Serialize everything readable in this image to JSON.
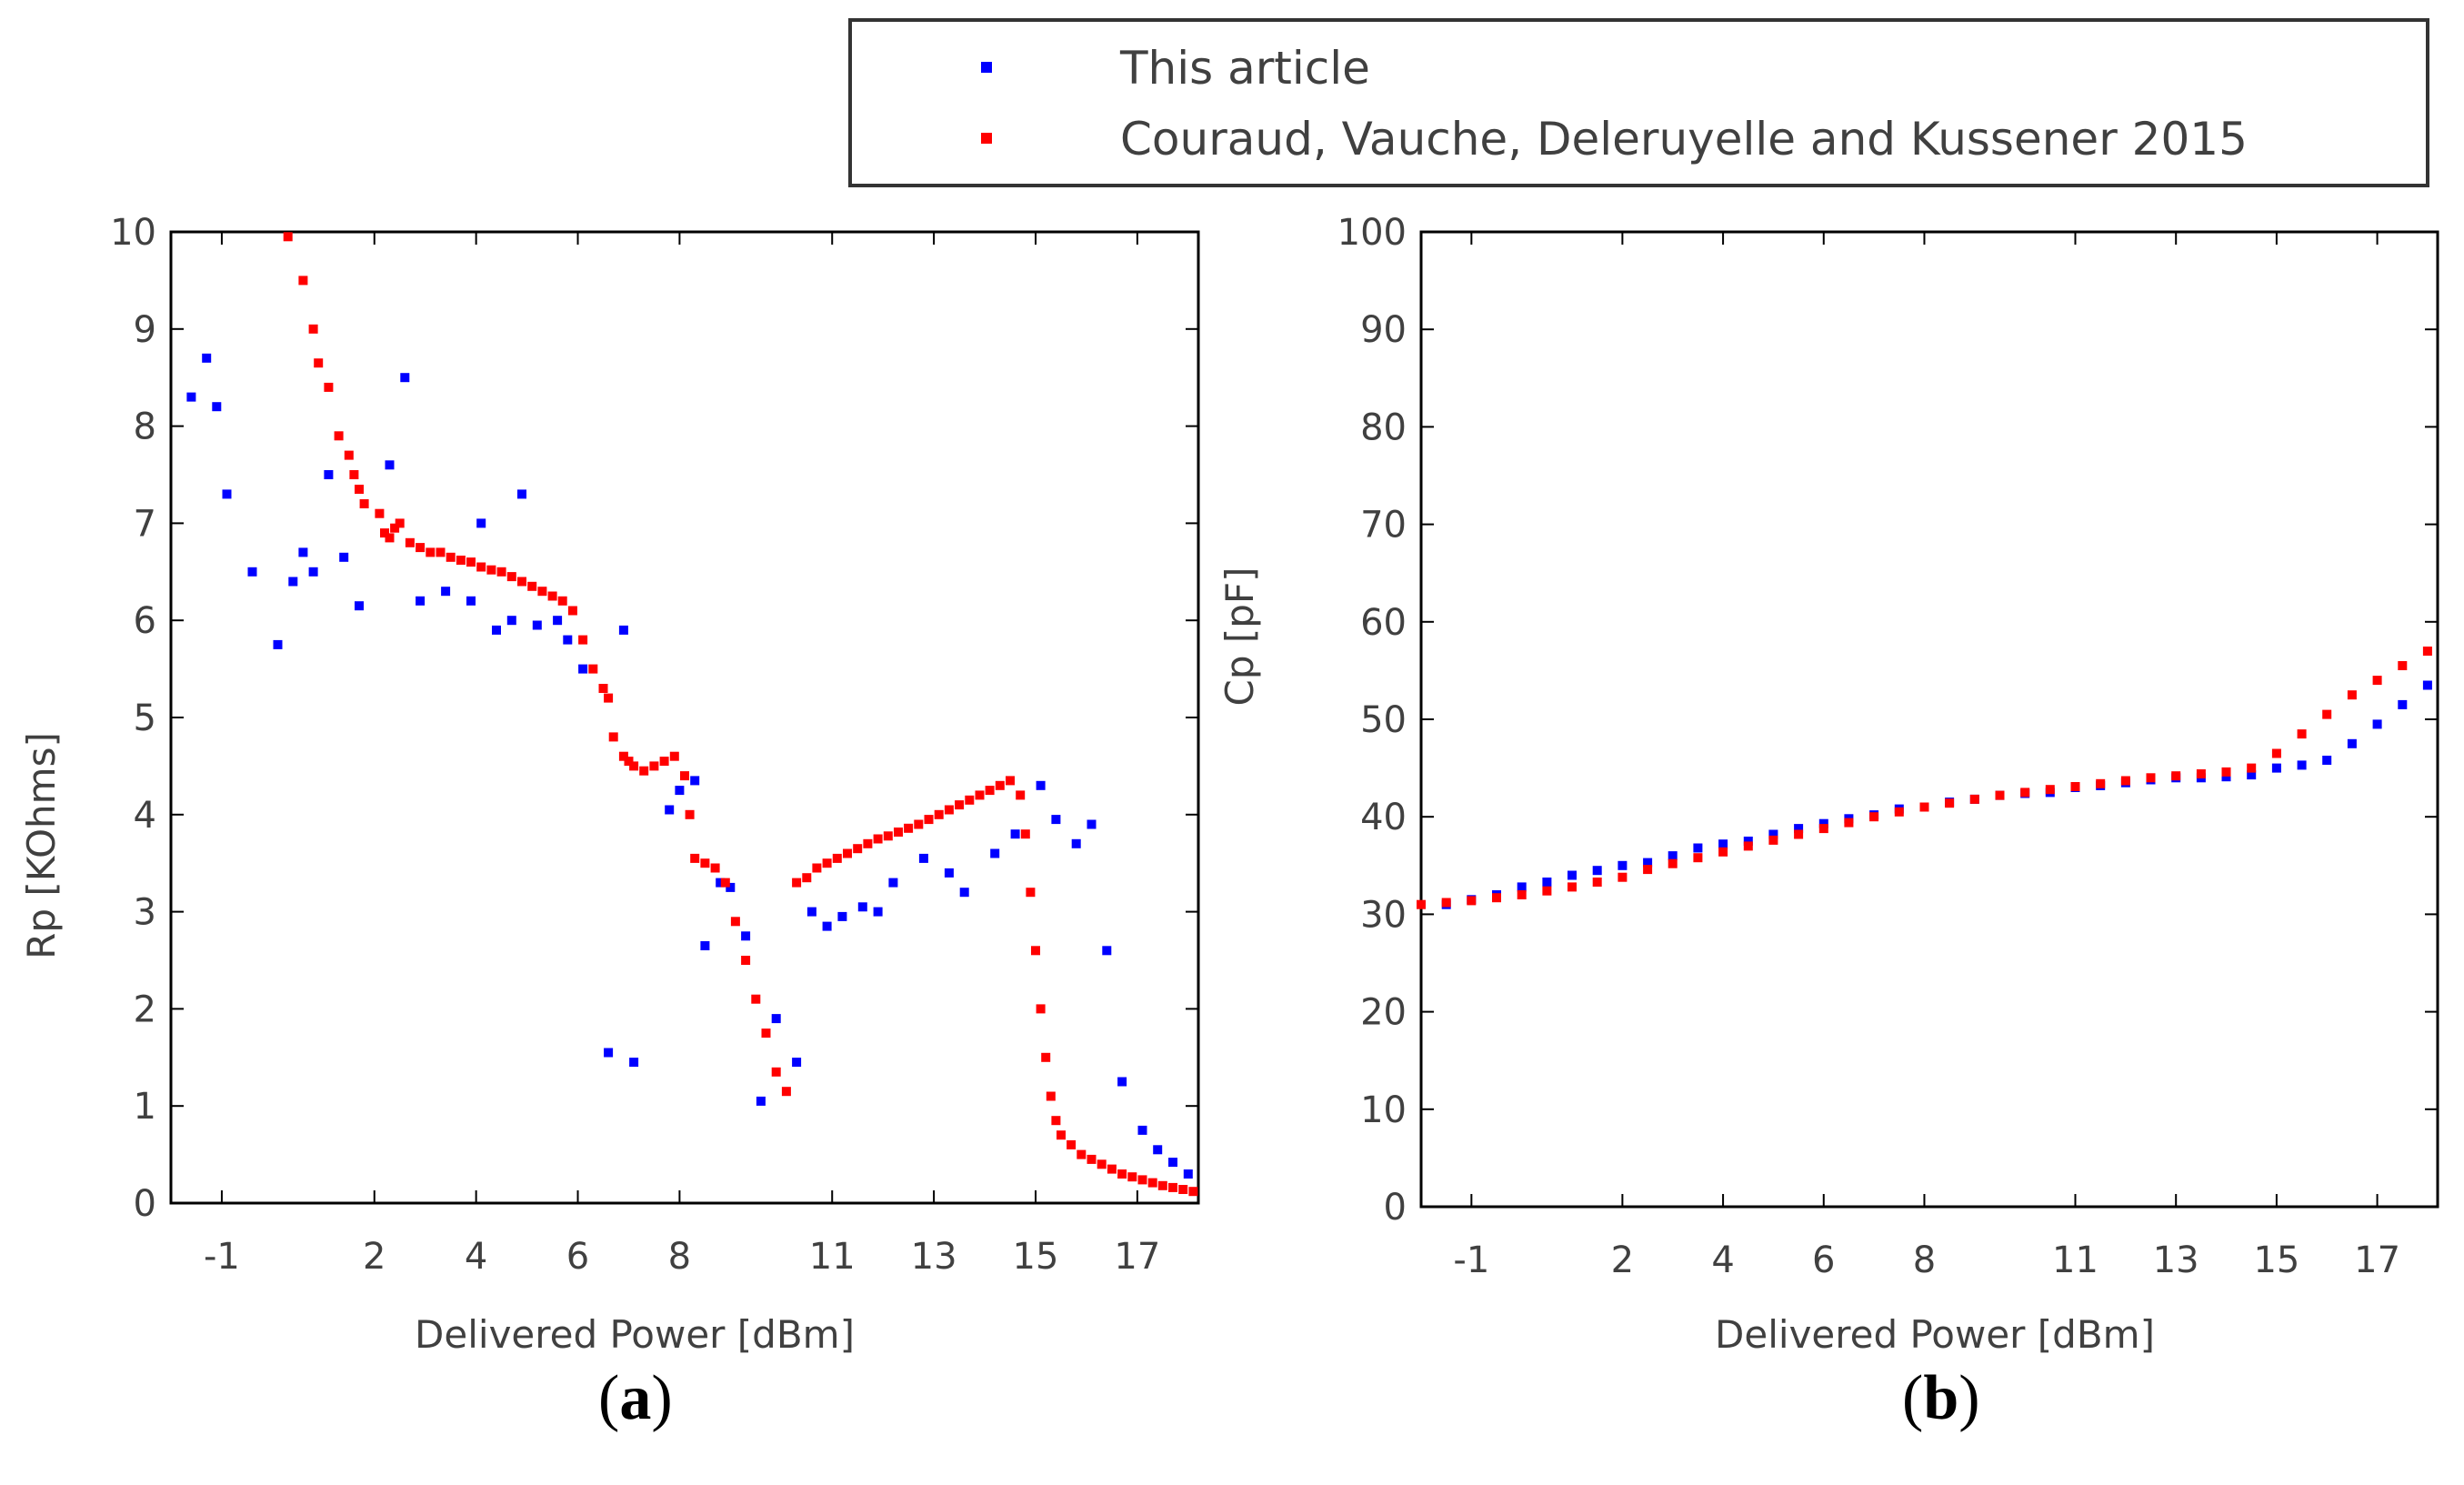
{
  "legend": {
    "entries": [
      {
        "label": "This article",
        "color": "#0000ff"
      },
      {
        "label": "Couraud, Vauche, Deleruyelle and Kussener 2015",
        "color": "#ff0000"
      }
    ]
  },
  "chart_data": [
    {
      "type": "scatter",
      "panel_label": {
        "open": "(",
        "letter": "a",
        "close": ")"
      },
      "xlabel": "Delivered Power [dBm]",
      "ylabel": "Rp [KOhms]",
      "xlim": [
        -2.0,
        18.2
      ],
      "ylim": [
        0,
        10
      ],
      "xticks": [
        -1,
        2,
        4,
        6,
        8,
        11,
        13,
        15,
        17
      ],
      "yticks": [
        0,
        1,
        2,
        3,
        4,
        5,
        6,
        7,
        8,
        9,
        10
      ],
      "series": [
        {
          "name": "This article",
          "color": "#0000ff",
          "x": [
            -1.6,
            -1.3,
            -1.1,
            -0.9,
            -0.4,
            0.1,
            0.4,
            0.6,
            0.8,
            1.1,
            1.4,
            1.7,
            2.3,
            2.6,
            2.9,
            3.4,
            3.9,
            4.1,
            4.4,
            4.7,
            4.9,
            5.2,
            5.6,
            5.8,
            6.1,
            6.6,
            6.9,
            7.1,
            7.8,
            8.0,
            8.3,
            8.5,
            8.8,
            9.0,
            9.3,
            9.6,
            9.9,
            10.3,
            10.6,
            10.9,
            11.2,
            11.6,
            11.9,
            12.2,
            12.8,
            13.3,
            13.6,
            14.2,
            14.6,
            15.1,
            15.4,
            15.8,
            16.1,
            16.4,
            16.7,
            17.1,
            17.4,
            17.7,
            18.0
          ],
          "y": [
            8.3,
            8.7,
            8.2,
            7.3,
            6.5,
            5.75,
            6.4,
            6.7,
            6.5,
            7.5,
            6.65,
            6.15,
            7.6,
            8.5,
            6.2,
            6.3,
            6.2,
            7.0,
            5.9,
            6.0,
            7.3,
            5.95,
            6.0,
            5.8,
            5.5,
            1.55,
            5.9,
            1.45,
            4.05,
            4.25,
            4.35,
            2.65,
            3.3,
            3.25,
            2.75,
            1.05,
            1.9,
            1.45,
            3.0,
            2.85,
            2.95,
            3.05,
            3.0,
            3.3,
            3.55,
            3.4,
            3.2,
            3.6,
            3.8,
            4.3,
            3.95,
            3.7,
            3.9,
            2.6,
            1.25,
            0.75,
            0.55,
            0.42,
            0.3
          ]
        },
        {
          "name": "Couraud, Vauche, Deleruyelle and Kussener 2015",
          "color": "#ff0000",
          "x": [
            0.3,
            0.6,
            0.8,
            0.9,
            1.1,
            1.3,
            1.5,
            1.6,
            1.7,
            1.8,
            2.1,
            2.2,
            2.3,
            2.4,
            2.5,
            2.7,
            2.9,
            3.1,
            3.3,
            3.5,
            3.7,
            3.9,
            4.1,
            4.3,
            4.5,
            4.7,
            4.9,
            5.1,
            5.3,
            5.5,
            5.7,
            5.9,
            6.1,
            6.3,
            6.5,
            6.6,
            6.7,
            6.9,
            7.0,
            7.1,
            7.3,
            7.5,
            7.7,
            7.9,
            8.1,
            8.2,
            8.3,
            8.5,
            8.7,
            8.9,
            9.1,
            9.3,
            9.5,
            9.7,
            9.9,
            10.1,
            10.3,
            10.5,
            10.7,
            10.9,
            11.1,
            11.3,
            11.5,
            11.7,
            11.9,
            12.1,
            12.3,
            12.5,
            12.7,
            12.9,
            13.1,
            13.3,
            13.5,
            13.7,
            13.9,
            14.1,
            14.3,
            14.5,
            14.7,
            14.8,
            14.9,
            15.0,
            15.1,
            15.2,
            15.3,
            15.4,
            15.5,
            15.7,
            15.9,
            16.1,
            16.3,
            16.5,
            16.7,
            16.9,
            17.1,
            17.3,
            17.5,
            17.7,
            17.9,
            18.1
          ],
          "y": [
            9.95,
            9.5,
            9.0,
            8.65,
            8.4,
            7.9,
            7.7,
            7.5,
            7.35,
            7.2,
            7.1,
            6.9,
            6.85,
            6.95,
            7.0,
            6.8,
            6.75,
            6.7,
            6.7,
            6.65,
            6.62,
            6.6,
            6.55,
            6.52,
            6.5,
            6.45,
            6.4,
            6.35,
            6.3,
            6.25,
            6.2,
            6.1,
            5.8,
            5.5,
            5.3,
            5.2,
            4.8,
            4.6,
            4.55,
            4.5,
            4.45,
            4.5,
            4.55,
            4.6,
            4.4,
            4.0,
            3.55,
            3.5,
            3.45,
            3.3,
            2.9,
            2.5,
            2.1,
            1.75,
            1.35,
            1.15,
            3.3,
            3.35,
            3.45,
            3.5,
            3.55,
            3.6,
            3.65,
            3.7,
            3.75,
            3.78,
            3.82,
            3.86,
            3.9,
            3.95,
            4.0,
            4.05,
            4.1,
            4.15,
            4.2,
            4.25,
            4.3,
            4.35,
            4.2,
            3.8,
            3.2,
            2.6,
            2.0,
            1.5,
            1.1,
            0.85,
            0.7,
            0.6,
            0.5,
            0.45,
            0.4,
            0.35,
            0.3,
            0.27,
            0.24,
            0.21,
            0.18,
            0.16,
            0.14,
            0.12
          ]
        }
      ]
    },
    {
      "type": "scatter",
      "panel_label": {
        "open": "(",
        "letter": "b",
        "close": ")"
      },
      "xlabel": "Delivered Power [dBm]",
      "ylabel": "Cp [pF]",
      "xlim": [
        -2.0,
        18.2
      ],
      "ylim": [
        0,
        100
      ],
      "xticks": [
        -1,
        2,
        4,
        6,
        8,
        11,
        13,
        15,
        17
      ],
      "yticks": [
        0,
        10,
        20,
        30,
        40,
        50,
        60,
        70,
        80,
        90,
        100
      ],
      "series": [
        {
          "name": "This article",
          "color": "#0000ff",
          "x": [
            -1.5,
            -1.0,
            -0.5,
            0.0,
            0.5,
            1.0,
            1.5,
            2.0,
            2.5,
            3.0,
            3.5,
            4.0,
            4.5,
            5.0,
            5.5,
            6.0,
            6.5,
            7.0,
            7.5,
            8.0,
            8.5,
            9.0,
            9.5,
            10.0,
            10.5,
            11.0,
            11.5,
            12.0,
            12.5,
            13.0,
            13.5,
            14.0,
            14.5,
            15.0,
            15.5,
            16.0,
            16.5,
            17.0,
            17.5,
            18.0
          ],
          "y": [
            31.0,
            31.5,
            32.0,
            32.8,
            33.3,
            34.0,
            34.5,
            35.0,
            35.3,
            36.0,
            36.8,
            37.2,
            37.5,
            38.2,
            38.8,
            39.3,
            39.8,
            40.2,
            40.8,
            41.0,
            41.5,
            41.8,
            42.2,
            42.4,
            42.5,
            43.0,
            43.2,
            43.5,
            43.8,
            44.0,
            44.0,
            44.1,
            44.3,
            45.0,
            45.3,
            45.8,
            47.5,
            49.5,
            51.5,
            53.5
          ]
        },
        {
          "name": "Couraud, Vauche, Deleruyelle and Kussener 2015",
          "color": "#ff0000",
          "x": [
            -2.0,
            -1.5,
            -1.0,
            -0.5,
            0.0,
            0.5,
            1.0,
            1.5,
            2.0,
            2.5,
            3.0,
            3.5,
            4.0,
            4.5,
            5.0,
            5.5,
            6.0,
            6.5,
            7.0,
            7.5,
            8.0,
            8.5,
            9.0,
            9.5,
            10.0,
            10.5,
            11.0,
            11.5,
            12.0,
            12.5,
            13.0,
            13.5,
            14.0,
            14.5,
            15.0,
            15.5,
            16.0,
            16.5,
            17.0,
            17.5,
            18.0
          ],
          "y": [
            31.0,
            31.2,
            31.4,
            31.7,
            32.0,
            32.4,
            32.8,
            33.3,
            33.8,
            34.6,
            35.2,
            35.8,
            36.4,
            37.0,
            37.6,
            38.2,
            38.8,
            39.4,
            40.0,
            40.5,
            41.0,
            41.4,
            41.8,
            42.2,
            42.5,
            42.8,
            43.1,
            43.4,
            43.7,
            44.0,
            44.2,
            44.4,
            44.6,
            45.0,
            46.5,
            48.5,
            50.5,
            52.5,
            54.0,
            55.5,
            57.0
          ]
        }
      ]
    }
  ]
}
